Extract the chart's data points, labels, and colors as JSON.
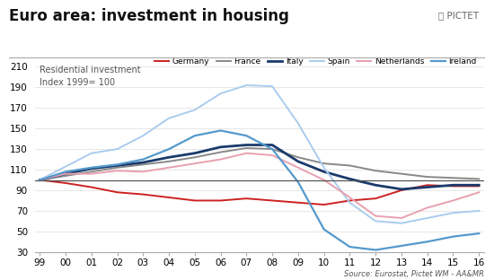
{
  "title": "Euro area: investment in housing",
  "subtitle": "Residential investment\nIndex 1999= 100",
  "source": "Source: Eurostat, Pictet WM - AA&MR",
  "x_ticks": [
    "99",
    "00",
    "01",
    "02",
    "03",
    "04",
    "05",
    "06",
    "07",
    "08",
    "09",
    "10",
    "11",
    "12",
    "13",
    "14",
    "15",
    "16"
  ],
  "ylim": [
    30,
    215
  ],
  "yticks": [
    30,
    50,
    70,
    90,
    110,
    130,
    150,
    170,
    190,
    210
  ],
  "hline_y": 100,
  "series": {
    "Germany": {
      "color": "#cc2222",
      "lw": 1.4,
      "values": [
        100,
        97,
        93,
        88,
        86,
        83,
        80,
        80,
        82,
        80,
        78,
        76,
        80,
        82,
        90,
        95,
        94,
        94
      ]
    },
    "France": {
      "color": "#888888",
      "lw": 1.4,
      "values": [
        100,
        104,
        108,
        112,
        115,
        118,
        122,
        127,
        131,
        130,
        122,
        116,
        114,
        109,
        106,
        103,
        102,
        101
      ]
    },
    "Italy": {
      "color": "#1a3a6b",
      "lw": 2.0,
      "values": [
        100,
        106,
        111,
        114,
        117,
        122,
        126,
        132,
        134,
        134,
        118,
        108,
        101,
        95,
        91,
        93,
        95,
        95
      ]
    },
    "Spain": {
      "color": "#aaccee",
      "lw": 1.4,
      "values": [
        100,
        113,
        126,
        130,
        143,
        160,
        168,
        184,
        192,
        191,
        155,
        112,
        78,
        60,
        58,
        63,
        68,
        70
      ]
    },
    "Netherlands": {
      "color": "#e8a0b0",
      "lw": 1.4,
      "values": [
        100,
        106,
        106,
        109,
        108,
        112,
        116,
        120,
        126,
        124,
        112,
        100,
        83,
        65,
        63,
        73,
        80,
        88
      ]
    },
    "Ireland": {
      "color": "#5599cc",
      "lw": 1.6,
      "values": [
        100,
        108,
        112,
        115,
        120,
        130,
        143,
        148,
        143,
        130,
        98,
        52,
        35,
        32,
        36,
        40,
        45,
        48
      ]
    }
  },
  "legend_order": [
    "Germany",
    "France",
    "Italy",
    "Spain",
    "Netherlands",
    "Ireland"
  ],
  "background_color": "#ffffff",
  "title_fontsize": 12,
  "axis_fontsize": 7.5,
  "label_fontsize": 7,
  "legend_fontsize": 6.5
}
